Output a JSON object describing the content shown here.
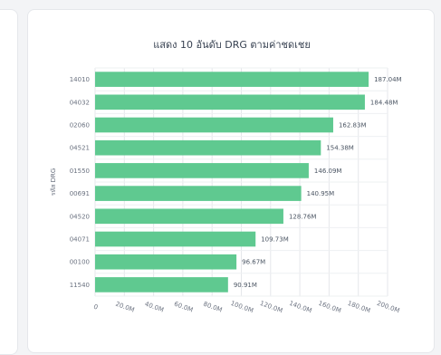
{
  "chart_data": {
    "type": "bar",
    "orientation": "horizontal",
    "title": "แสดง 10 อันดับ DRG ตามค่าชดเชย",
    "ylabel": "รหัส DRG",
    "xlabel": "",
    "categories": [
      "14010",
      "04032",
      "02060",
      "04521",
      "01550",
      "00691",
      "04520",
      "04071",
      "00100",
      "11540"
    ],
    "values": [
      187.04,
      184.48,
      162.83,
      154.38,
      146.09,
      140.95,
      128.76,
      109.73,
      96.67,
      90.91
    ],
    "data_labels": [
      "187.04M",
      "184.48M",
      "162.83M",
      "154.38M",
      "146.09M",
      "140.95M",
      "128.76M",
      "109.73M",
      "96.67M",
      "90.91M"
    ],
    "x_ticks": [
      "0",
      "20.0M",
      "40.0M",
      "60.0M",
      "80.0M",
      "100.0M",
      "120.0M",
      "140.0M",
      "160.0M",
      "180.0M",
      "200.0M"
    ],
    "xlim": [
      0,
      200
    ],
    "grid": true,
    "bar_color": "#5fc990"
  }
}
